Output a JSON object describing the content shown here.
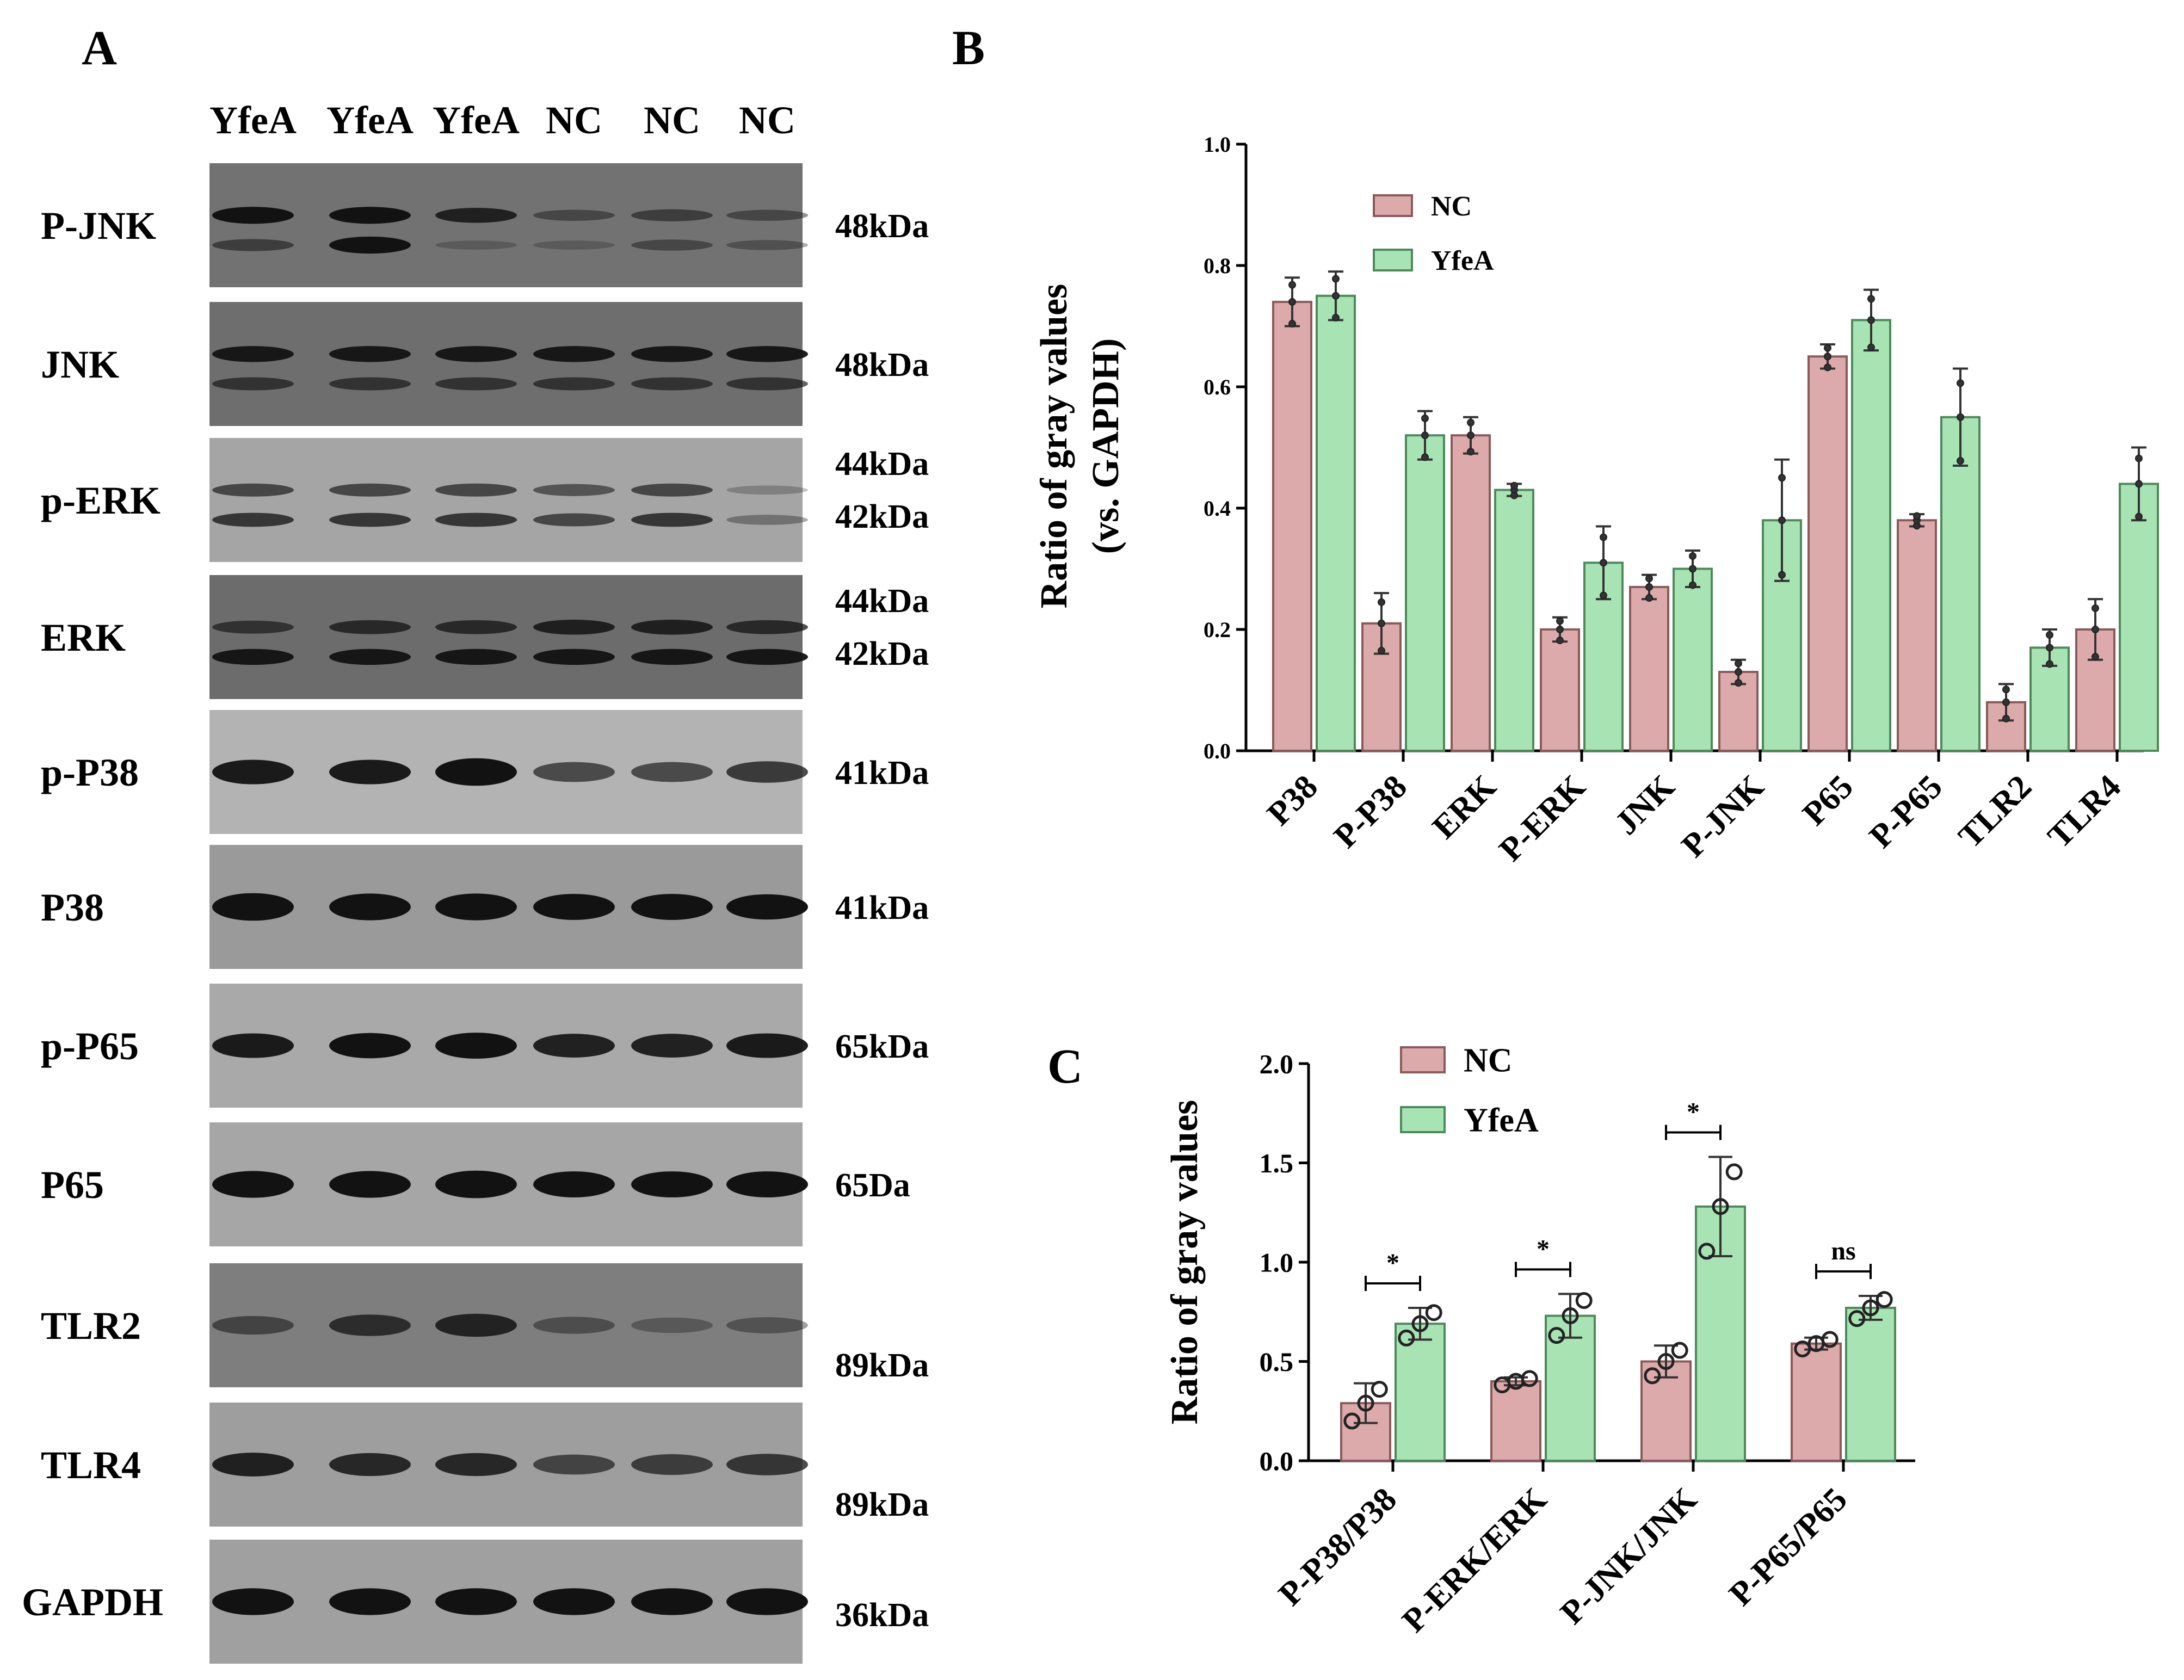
{
  "colors": {
    "nc": "#dcaaaa",
    "yfea": "#a8e3b4",
    "blot_bg": "#5a5a5a",
    "band": "#121212"
  },
  "panel_a": {
    "letter": "A",
    "lanes": [
      "YfeA",
      "YfeA",
      "YfeA",
      "NC",
      "NC",
      "NC"
    ],
    "blots": [
      {
        "label": "P-JNK",
        "kda": [
          "48kDa"
        ],
        "bg": "#727272",
        "bands": [
          [
            0.9,
            0.9,
            0.7,
            0.3,
            0.4,
            0.3
          ],
          [
            0.4,
            0.9,
            0.1,
            0.1,
            0.3,
            0.2
          ]
        ]
      },
      {
        "label": "JNK",
        "kda": [
          "48kDa"
        ],
        "bg": "#6e6e6e",
        "bands": [
          [
            0.8,
            0.8,
            0.8,
            0.8,
            0.8,
            0.8
          ],
          [
            0.5,
            0.5,
            0.5,
            0.5,
            0.5,
            0.5
          ]
        ]
      },
      {
        "label": "p-ERK",
        "kda": [
          "44kDa",
          "42kDa"
        ],
        "bg": "#a5a5a5",
        "bands": [
          [
            0.5,
            0.5,
            0.5,
            0.4,
            0.5,
            0.1
          ],
          [
            0.6,
            0.6,
            0.6,
            0.5,
            0.6,
            0.2
          ]
        ]
      },
      {
        "label": "ERK",
        "kda": [
          "44kDa",
          "42kDa"
        ],
        "bg": "#6c6c6c",
        "bands": [
          [
            0.5,
            0.6,
            0.6,
            0.7,
            0.7,
            0.6
          ],
          [
            0.8,
            0.8,
            0.8,
            0.8,
            0.8,
            0.8
          ]
        ]
      },
      {
        "label": "p-P38",
        "kda": [
          "41kDa"
        ],
        "bg": "#b3b3b3",
        "bands": [
          [
            0.8,
            0.8,
            1.0,
            0.5,
            0.5,
            0.6
          ]
        ]
      },
      {
        "label": "P38",
        "kda": [
          "41kDa"
        ],
        "bg": "#9a9a9a",
        "bands": [
          [
            1.0,
            0.95,
            0.95,
            0.9,
            0.9,
            0.85
          ]
        ]
      },
      {
        "label": "p-P65",
        "kda": [
          "65kDa"
        ],
        "bg": "#a9a9a9",
        "bands": [
          [
            0.8,
            0.85,
            0.9,
            0.75,
            0.75,
            0.8
          ]
        ]
      },
      {
        "label": "P65",
        "kda": [
          "65Da"
        ],
        "bg": "#a6a6a6",
        "bands": [
          [
            0.95,
            0.95,
            1.0,
            0.9,
            0.9,
            0.9
          ]
        ]
      },
      {
        "label": "TLR2",
        "kda": [
          "89kDa"
        ],
        "bg": "#7e7e7e",
        "bands": [
          [
            0.4,
            0.6,
            0.7,
            0.3,
            0.2,
            0.25
          ]
        ]
      },
      {
        "label": "TLR4",
        "kda": [
          "89kDa"
        ],
        "bg": "#9e9e9e",
        "bands": [
          [
            0.75,
            0.7,
            0.7,
            0.5,
            0.55,
            0.6
          ]
        ]
      },
      {
        "label": "GAPDH",
        "kda": [
          "36kDa"
        ],
        "bg": "#a0a0a0",
        "bands": [
          [
            0.95,
            0.95,
            0.95,
            0.95,
            0.95,
            0.95
          ]
        ]
      }
    ]
  },
  "chart_data": [
    {
      "panel": "B",
      "type": "bar",
      "title": "",
      "xlabel": "",
      "ylabel": [
        "Ratio of gray values",
        "(vs. GAPDH)"
      ],
      "ylim": [
        0,
        1.0
      ],
      "yticks": [
        "0.0",
        "0.2",
        "0.4",
        "0.6",
        "0.8",
        "1.0"
      ],
      "legend_placement": "top-left",
      "categories": [
        "P38",
        "P-P38",
        "ERK",
        "P-ERK",
        "JNK",
        "P-JNK",
        "P65",
        "P-P65",
        "TLR2",
        "TLR4"
      ],
      "series": [
        {
          "name": "NC",
          "values": [
            0.74,
            0.21,
            0.52,
            0.2,
            0.27,
            0.13,
            0.65,
            0.38,
            0.08,
            0.2
          ],
          "errors": [
            0.04,
            0.05,
            0.03,
            0.02,
            0.02,
            0.02,
            0.02,
            0.01,
            0.03,
            0.05
          ]
        },
        {
          "name": "YfeA",
          "values": [
            0.75,
            0.52,
            0.43,
            0.31,
            0.3,
            0.38,
            0.71,
            0.55,
            0.17,
            0.44
          ],
          "errors": [
            0.04,
            0.04,
            0.01,
            0.06,
            0.03,
            0.1,
            0.05,
            0.08,
            0.03,
            0.06
          ]
        }
      ]
    },
    {
      "panel": "C",
      "type": "bar",
      "title": "",
      "xlabel": "",
      "ylabel": "Ratio of gray values",
      "ylim": [
        0,
        2.0
      ],
      "yticks": [
        "0.0",
        "0.5",
        "1.0",
        "1.5",
        "2.0"
      ],
      "legend_placement": "top-left",
      "categories": [
        "P-P38/P38",
        "P-ERK/ERK",
        "P-JNK/JNK",
        "P-P65/P65"
      ],
      "series": [
        {
          "name": "NC",
          "values": [
            0.29,
            0.4,
            0.5,
            0.59
          ],
          "errors": [
            0.1,
            0.02,
            0.08,
            0.03
          ]
        },
        {
          "name": "YfeA",
          "values": [
            0.69,
            0.73,
            1.28,
            0.77
          ],
          "errors": [
            0.08,
            0.11,
            0.25,
            0.06
          ]
        }
      ],
      "significance": [
        "*",
        "*",
        "*",
        "ns"
      ]
    }
  ]
}
